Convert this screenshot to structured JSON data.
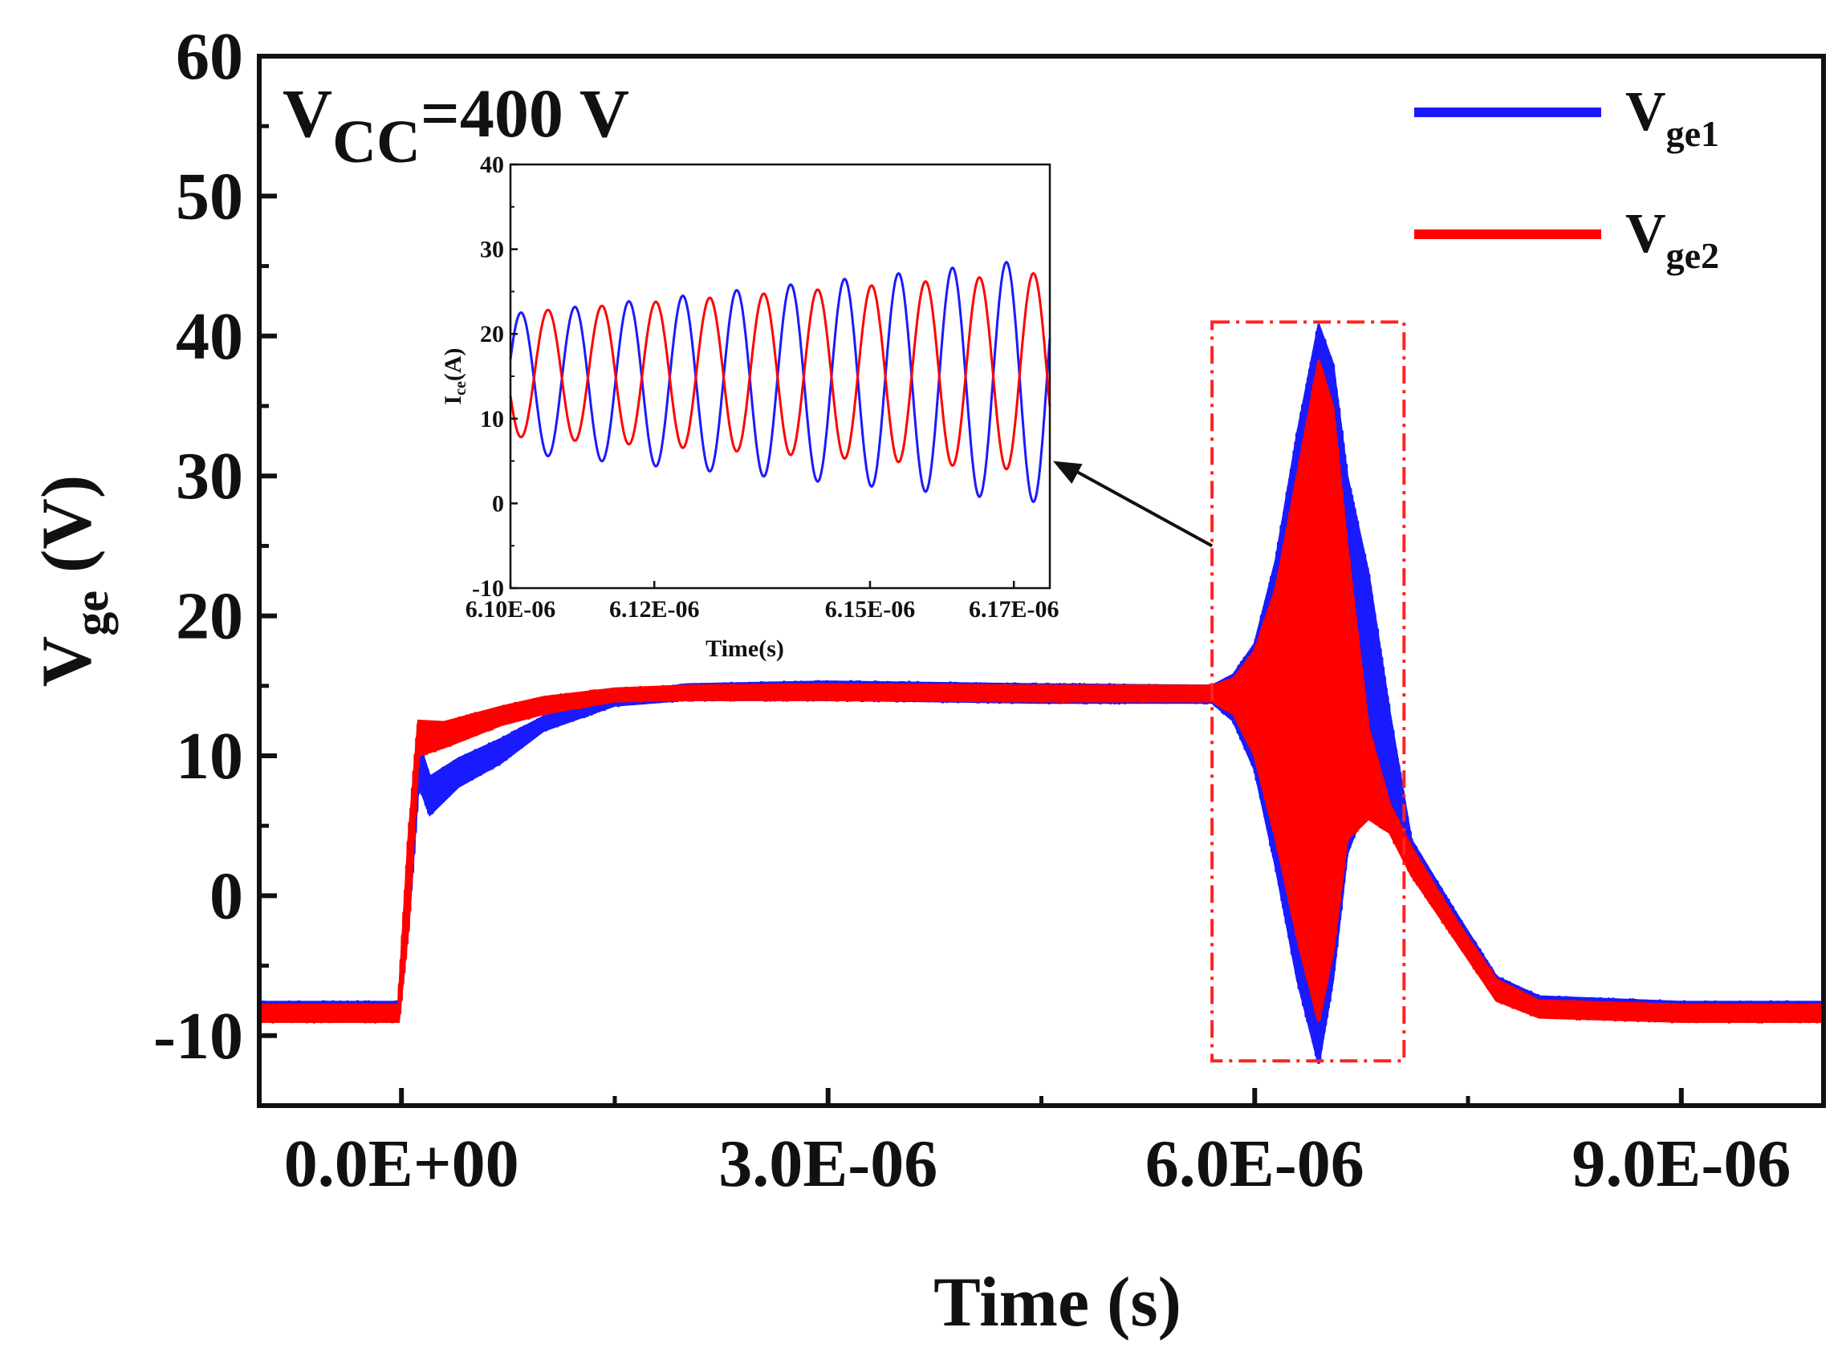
{
  "chart_data": {
    "type": "line",
    "title": "",
    "xlabel": "Time (s)",
    "ylabel_main": "V",
    "ylabel_sub": "ge",
    "ylabel_unit": " (V)",
    "xlim": [
      -1e-06,
      1e-05
    ],
    "ylim": [
      -15,
      60
    ],
    "x_ticks": [
      {
        "value": 0.0,
        "label": "0.0E+00"
      },
      {
        "value": 3e-06,
        "label": "3.0E-06"
      },
      {
        "value": 6e-06,
        "label": "6.0E-06"
      },
      {
        "value": 9e-06,
        "label": "9.0E-06"
      }
    ],
    "y_ticks": [
      {
        "value": 60,
        "label": "60"
      },
      {
        "value": 50,
        "label": "50"
      },
      {
        "value": 40,
        "label": "40"
      },
      {
        "value": 30,
        "label": "30"
      },
      {
        "value": 20,
        "label": "20"
      },
      {
        "value": 10,
        "label": "10"
      },
      {
        "value": 0,
        "label": "0"
      },
      {
        "value": -10,
        "label": "-10"
      }
    ],
    "annotation": {
      "main": "V",
      "sub": "CC",
      "rest": "=400 V"
    },
    "legend": [
      {
        "main": "V",
        "sub": "ge1",
        "color": "#1a1aff"
      },
      {
        "main": "V",
        "sub": "ge2",
        "color": "#ff0000"
      }
    ],
    "series": [
      {
        "name": "Vge1",
        "color": "#1a1aff",
        "envelope_upper": [
          [
            -1e-06,
            -7.6
          ],
          [
            -2e-08,
            -7.6
          ],
          [
            5e-08,
            2
          ],
          [
            1.2e-07,
            11
          ],
          [
            2e-07,
            8.5
          ],
          [
            4e-07,
            9.8
          ],
          [
            7e-07,
            11.2
          ],
          [
            1e-06,
            12.8
          ],
          [
            1.5e-06,
            14.4
          ],
          [
            2e-06,
            15.1
          ],
          [
            3e-06,
            15.3
          ],
          [
            4.5e-06,
            15.1
          ],
          [
            5.7e-06,
            15.0
          ],
          [
            5.85e-06,
            15.8
          ],
          [
            6e-06,
            18
          ],
          [
            6.15e-06,
            24
          ],
          [
            6.3e-06,
            33
          ],
          [
            6.45e-06,
            40.8
          ],
          [
            6.55e-06,
            38
          ],
          [
            6.65e-06,
            30
          ],
          [
            6.8e-06,
            23
          ],
          [
            6.95e-06,
            13
          ],
          [
            7.1e-06,
            4
          ],
          [
            7.4e-06,
            -1
          ],
          [
            7.7e-06,
            -5.8
          ],
          [
            8e-06,
            -7.2
          ],
          [
            9e-06,
            -7.6
          ],
          [
            1e-05,
            -7.6
          ]
        ],
        "envelope_lower": [
          [
            -1e-06,
            -8.9
          ],
          [
            -2e-08,
            -8.9
          ],
          [
            5e-08,
            -2
          ],
          [
            1.2e-07,
            8
          ],
          [
            2e-07,
            5.8
          ],
          [
            4e-07,
            7.8
          ],
          [
            7e-07,
            9.5
          ],
          [
            1e-06,
            11.8
          ],
          [
            1.5e-06,
            13.6
          ],
          [
            2e-06,
            14.0
          ],
          [
            3e-06,
            14.0
          ],
          [
            4.5e-06,
            13.8
          ],
          [
            5.7e-06,
            13.8
          ],
          [
            5.85e-06,
            12.5
          ],
          [
            6e-06,
            9
          ],
          [
            6.15e-06,
            2
          ],
          [
            6.3e-06,
            -6
          ],
          [
            6.45e-06,
            -12
          ],
          [
            6.55e-06,
            -6
          ],
          [
            6.65e-06,
            3
          ],
          [
            6.8e-06,
            7
          ],
          [
            6.95e-06,
            5
          ],
          [
            7.1e-06,
            2
          ],
          [
            7.4e-06,
            -2.5
          ],
          [
            7.7e-06,
            -7
          ],
          [
            8e-06,
            -8.5
          ],
          [
            9e-06,
            -8.9
          ],
          [
            1e-05,
            -8.9
          ]
        ]
      },
      {
        "name": "Vge2",
        "color": "#ff0000",
        "envelope_upper": [
          [
            -1e-06,
            -7.8
          ],
          [
            -2e-08,
            -7.8
          ],
          [
            5e-08,
            4
          ],
          [
            1.2e-07,
            12.5
          ],
          [
            3e-07,
            12.4
          ],
          [
            7e-07,
            13.5
          ],
          [
            1e-06,
            14.2
          ],
          [
            1.5e-06,
            14.8
          ],
          [
            2e-06,
            15.0
          ],
          [
            3e-06,
            15.1
          ],
          [
            4.5e-06,
            15.0
          ],
          [
            5.7e-06,
            15.0
          ],
          [
            5.85e-06,
            15.5
          ],
          [
            6e-06,
            17.5
          ],
          [
            6.15e-06,
            22
          ],
          [
            6.3e-06,
            30
          ],
          [
            6.45e-06,
            38.3
          ],
          [
            6.55e-06,
            35
          ],
          [
            6.65e-06,
            25
          ],
          [
            6.8e-06,
            12
          ],
          [
            6.95e-06,
            6.5
          ],
          [
            7.1e-06,
            3.5
          ],
          [
            7.4e-06,
            -1.5
          ],
          [
            7.7e-06,
            -6
          ],
          [
            8e-06,
            -7.5
          ],
          [
            9e-06,
            -7.8
          ],
          [
            1e-05,
            -7.8
          ]
        ],
        "envelope_lower": [
          [
            -1e-06,
            -9.0
          ],
          [
            -2e-08,
            -9.0
          ],
          [
            5e-08,
            -2
          ],
          [
            1.2e-07,
            10
          ],
          [
            3e-07,
            10.6
          ],
          [
            7e-07,
            12.2
          ],
          [
            1e-06,
            13.0
          ],
          [
            1.5e-06,
            13.9
          ],
          [
            2e-06,
            14.0
          ],
          [
            3e-06,
            14.0
          ],
          [
            4.5e-06,
            13.9
          ],
          [
            5.7e-06,
            13.9
          ],
          [
            5.85e-06,
            13.0
          ],
          [
            6e-06,
            10
          ],
          [
            6.15e-06,
            4
          ],
          [
            6.3e-06,
            -3
          ],
          [
            6.45e-06,
            -9
          ],
          [
            6.55e-06,
            -4
          ],
          [
            6.65e-06,
            4
          ],
          [
            6.8e-06,
            5.5
          ],
          [
            6.95e-06,
            4.5
          ],
          [
            7.1e-06,
            1.5
          ],
          [
            7.4e-06,
            -3
          ],
          [
            7.7e-06,
            -7.5
          ],
          [
            8e-06,
            -8.7
          ],
          [
            9e-06,
            -9.0
          ],
          [
            1e-05,
            -9.0
          ]
        ]
      }
    ],
    "highlight_box": {
      "x0": 5.7e-06,
      "x1": 7.05e-06,
      "y0": -11.8,
      "y1": 41
    },
    "arrow": {
      "from": [
        5.7e-06,
        25
      ],
      "to": [
        6.175e-06,
        5
      ]
    },
    "inset": {
      "xlim": [
        6.1e-06,
        6.175e-06
      ],
      "ylim": [
        -10,
        40
      ],
      "xlabel": "Time(s)",
      "ylabel": "I",
      "ylabel_sub": "ce",
      "ylabel_unit": "(A)",
      "x_ticks": [
        {
          "value": 6.1e-06,
          "label": "6.10E-06"
        },
        {
          "value": 6.12e-06,
          "label": "6.12E-06"
        },
        {
          "value": 6.15e-06,
          "label": "6.15E-06"
        },
        {
          "value": 6.17e-06,
          "label": "6.17E-06"
        }
      ],
      "y_ticks": [
        {
          "value": 40,
          "label": "40"
        },
        {
          "value": 30,
          "label": "30"
        },
        {
          "value": 20,
          "label": "20"
        },
        {
          "value": 10,
          "label": "10"
        },
        {
          "value": 0,
          "label": "0"
        },
        {
          "value": -10,
          "label": "-10"
        }
      ],
      "series": [
        {
          "name": "Vge1",
          "color": "#1a1aff",
          "start_center": 14.2,
          "end_center": 14.5,
          "start_amp": 8.2,
          "end_amp": 14.5,
          "cycles": 10,
          "phase": 0
        },
        {
          "name": "Vge2",
          "color": "#ff0000",
          "start_center": 15.2,
          "end_center": 15.5,
          "start_amp": 7.3,
          "end_amp": 11.8,
          "cycles": 10,
          "phase": 3.14159
        }
      ]
    }
  }
}
